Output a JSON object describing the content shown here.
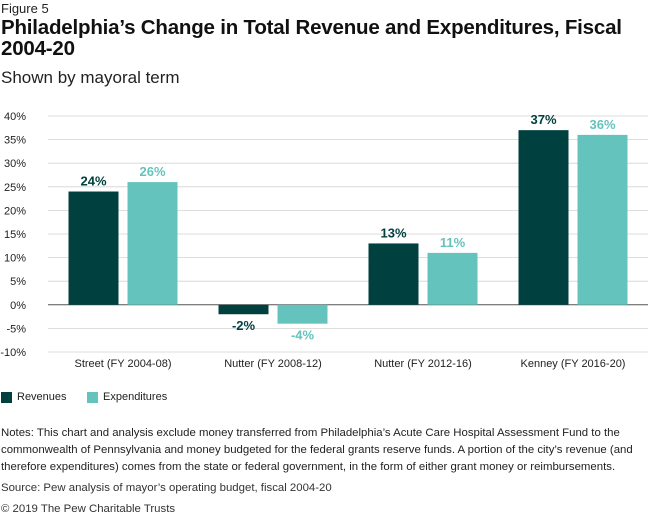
{
  "figure_label": "Figure 5",
  "title": "Philadelphia’s Change in Total Revenue and Expenditures, Fiscal 2004-20",
  "subtitle": "Shown by mayoral term",
  "colors": {
    "revenues": "#00413f",
    "expenditures": "#64c3bc",
    "grid": "#d3d3d3",
    "axis": "#555555"
  },
  "chart_data": {
    "type": "bar",
    "categories": [
      "Street (FY 2004-08)",
      "Nutter (FY 2008-12)",
      "Nutter (FY 2012-16)",
      "Kenney (FY 2016-20)"
    ],
    "series": [
      {
        "name": "Revenues",
        "values": [
          24,
          -2,
          13,
          37
        ],
        "labels": [
          "24%",
          "-2%",
          "13%",
          "37%"
        ]
      },
      {
        "name": "Expenditures",
        "values": [
          26,
          -4,
          11,
          36
        ],
        "labels": [
          "26%",
          "-4%",
          "11%",
          "36%"
        ]
      }
    ],
    "ylim": [
      -10,
      40
    ],
    "yticks": [
      40,
      35,
      30,
      25,
      20,
      15,
      10,
      5,
      0,
      -5,
      -10
    ],
    "ytick_labels": [
      "40%",
      "35%",
      "30%",
      "25%",
      "20%",
      "15%",
      "10%",
      "5%",
      "0%",
      "-5%",
      "-10%"
    ],
    "grid": true,
    "legend_position": "bottom-left"
  },
  "legend": {
    "revenues_label": "Revenues",
    "expenditures_label": "Expenditures"
  },
  "notes": "Notes: This chart and analysis exclude money transferred from Philadelphia’s Acute Care Hospital Assessment Fund to the commonwealth of Pennsylvania and money budgeted for the federal grants reserve funds. A portion of the city’s revenue (and therefore expenditures) comes from the state or federal government, in the form of either grant money or reimbursements.",
  "source": "Source: Pew analysis of mayor’s operating budget, fiscal 2004-20",
  "copyright": "© 2019 The Pew Charitable Trusts"
}
